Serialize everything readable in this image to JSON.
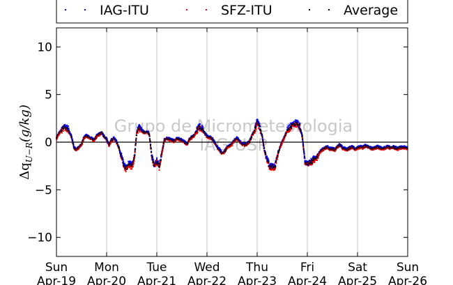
{
  "chart_data": {
    "type": "scatter",
    "ylabel": "Δq_{U-R}(g/kg)",
    "ylabel_display": "Δq",
    "ylabel_sub": "U−R",
    "ylabel_units": "(g/kg)",
    "ylim": [
      -12,
      12
    ],
    "yticks": [
      -10,
      -5,
      0,
      5,
      10
    ],
    "ytick_labels": [
      "−10",
      "−5",
      "0",
      "5",
      "10"
    ],
    "xlim": [
      "2015-04-19",
      "2015-04-26"
    ],
    "xticks": [
      {
        "day": "Sun",
        "date": "Apr-19"
      },
      {
        "day": "Mon",
        "date": "Apr-20"
      },
      {
        "day": "Tue",
        "date": "Apr-21"
      },
      {
        "day": "Wed",
        "date": "Apr-22"
      },
      {
        "day": "Thu",
        "date": "Apr-23"
      },
      {
        "day": "Fri",
        "date": "Apr-24"
      },
      {
        "day": "Sat",
        "date": "Apr-25"
      },
      {
        "day": "Sun",
        "date": "Apr-26"
      }
    ],
    "grid": "vertical",
    "zero_line": true,
    "legend_position": "top",
    "watermark": [
      "Grupo de Micrometeorologia",
      "IAG-USP"
    ],
    "series": [
      {
        "name": "IAG-ITU",
        "color": "#0000ff"
      },
      {
        "name": "SFZ-ITU",
        "color": "#ff0000"
      },
      {
        "name": "Average",
        "color": "#000000"
      }
    ],
    "average_profile": {
      "x_days": [
        0.0,
        0.05,
        0.1,
        0.15,
        0.2,
        0.25,
        0.3,
        0.35,
        0.4,
        0.45,
        0.5,
        0.55,
        0.6,
        0.65,
        0.7,
        0.75,
        0.8,
        0.85,
        0.9,
        0.95,
        1.0,
        1.05,
        1.1,
        1.15,
        1.2,
        1.25,
        1.3,
        1.35,
        1.4,
        1.45,
        1.5,
        1.55,
        1.6,
        1.65,
        1.7,
        1.75,
        1.8,
        1.85,
        1.9,
        1.95,
        2.0,
        2.05,
        2.1,
        2.15,
        2.2,
        2.25,
        2.3,
        2.35,
        2.4,
        2.45,
        2.5,
        2.55,
        2.6,
        2.65,
        2.7,
        2.75,
        2.8,
        2.85,
        2.9,
        2.95,
        3.0,
        3.05,
        3.1,
        3.15,
        3.2,
        3.25,
        3.3,
        3.35,
        3.4,
        3.45,
        3.5,
        3.55,
        3.6,
        3.65,
        3.7,
        3.75,
        3.8,
        3.85,
        3.9,
        3.95,
        4.0,
        4.05,
        4.1,
        4.15,
        4.2,
        4.25,
        4.3,
        4.35,
        4.4,
        4.45,
        4.5,
        4.55,
        4.6,
        4.65,
        4.7,
        4.75,
        4.8,
        4.85,
        4.9,
        4.95,
        5.0,
        5.05,
        5.1,
        5.15,
        5.2,
        5.25,
        5.3,
        5.35,
        5.4,
        5.45,
        5.5,
        5.55,
        5.6,
        5.65,
        5.7,
        5.75,
        5.8,
        5.85,
        5.9,
        5.95,
        6.0,
        6.05,
        6.1,
        6.15,
        6.2,
        6.25,
        6.3,
        6.35,
        6.4,
        6.45,
        6.5,
        6.55,
        6.6,
        6.65,
        6.7,
        6.75,
        6.8,
        6.85,
        6.9,
        6.95,
        7.0
      ],
      "y": [
        0.4,
        0.9,
        1.2,
        1.6,
        1.5,
        1.2,
        0.6,
        -0.6,
        -0.8,
        -0.5,
        -0.3,
        0.5,
        0.7,
        0.5,
        0.4,
        0.2,
        0.6,
        0.8,
        1.0,
        0.6,
        0.3,
        -0.3,
        0.2,
        0.4,
        0.0,
        -0.7,
        -1.6,
        -2.5,
        -2.8,
        -2.2,
        -2.6,
        -1.8,
        1.0,
        1.5,
        1.2,
        1.0,
        1.1,
        0.9,
        -1.5,
        -2.5,
        -2.0,
        -2.6,
        -1.2,
        0.2,
        0.4,
        0.3,
        0.2,
        0.1,
        0.4,
        0.3,
        0.2,
        0.0,
        -0.2,
        0.3,
        0.5,
        0.7,
        1.2,
        1.6,
        1.4,
        1.0,
        0.6,
        0.5,
        0.4,
        0.0,
        -0.5,
        -0.8,
        -1.2,
        -1.0,
        -0.6,
        -0.4,
        -0.2,
        0.2,
        0.4,
        0.1,
        -0.2,
        -0.3,
        -0.2,
        0.1,
        0.7,
        1.2,
        2.2,
        1.6,
        0.6,
        -1.0,
        -1.8,
        -2.7,
        -2.5,
        -2.7,
        -1.5,
        -0.6,
        0.0,
        0.6,
        1.2,
        1.5,
        1.8,
        1.9,
        2.0,
        1.6,
        0.6,
        -2.0,
        -2.4,
        -2.2,
        -2.0,
        -1.7,
        -1.5,
        -1.0,
        -0.8,
        -0.6,
        -0.5,
        -0.7,
        -0.7,
        -0.8,
        -0.5,
        -0.3,
        -0.6,
        -0.7,
        -0.8,
        -0.6,
        -0.5,
        -0.7,
        -0.6,
        -0.5,
        -0.6,
        -0.4,
        -0.5,
        -0.6,
        -0.7,
        -0.6,
        -0.5,
        -0.6,
        -0.7,
        -0.6,
        -0.5,
        -0.6,
        -0.5,
        -0.6,
        -0.7,
        -0.6,
        -0.5,
        -0.6,
        -0.6
      ]
    }
  }
}
